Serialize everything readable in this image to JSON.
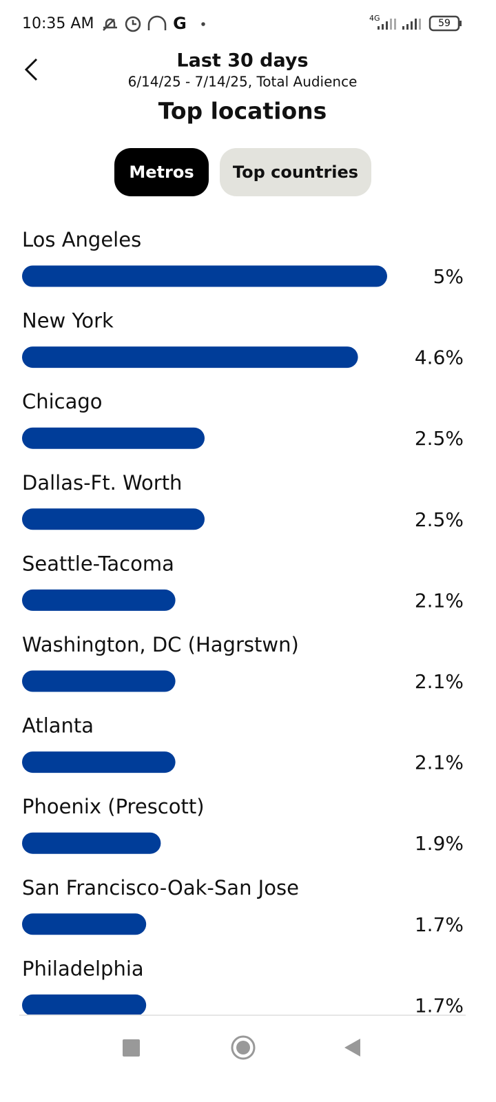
{
  "status_bar": {
    "time": "10:35 AM",
    "network": "4G",
    "battery": "59"
  },
  "header": {
    "period": "Last 30 days",
    "subtitle": "6/14/25 - 7/14/25, Total Audience",
    "title": "Top locations"
  },
  "tabs": [
    "Metros",
    "Top countries"
  ],
  "chart_data": {
    "type": "bar",
    "orientation": "horizontal",
    "color": "#003d99",
    "categories": [
      "Los Angeles",
      "New York",
      "Chicago",
      "Dallas-Ft. Worth",
      "Seattle-Tacoma",
      "Washington, DC (Hagrstwn)",
      "Atlanta",
      "Phoenix (Prescott)",
      "San Francisco-Oak-San Jose",
      "Philadelphia"
    ],
    "values": [
      5,
      4.6,
      2.5,
      2.5,
      2.1,
      2.1,
      2.1,
      1.9,
      1.7,
      1.7
    ],
    "value_labels": [
      "5%",
      "4.6%",
      "2.5%",
      "2.5%",
      "2.1%",
      "2.1%",
      "2.1%",
      "1.9%",
      "1.7%",
      "1.7%"
    ]
  }
}
